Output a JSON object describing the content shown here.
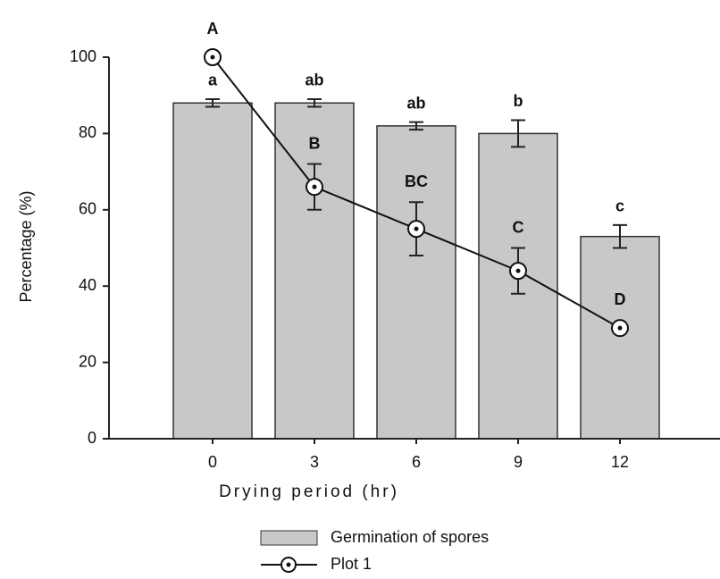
{
  "chart_data": {
    "type": "bar",
    "xlabel": "Drying period (hr)",
    "ylabel": "Percentage (%)",
    "categories": [
      "0",
      "3",
      "6",
      "9",
      "12"
    ],
    "series": [
      {
        "name": "Germination of spores",
        "type": "bar",
        "color": "#c8c8c8",
        "values": [
          88,
          88,
          82,
          80,
          53
        ],
        "errors": [
          1,
          1,
          1,
          3.5,
          3
        ],
        "letters": [
          "a",
          "ab",
          "ab",
          "b",
          "c"
        ]
      },
      {
        "name": "Plot 1",
        "type": "line",
        "color": "#111111",
        "values": [
          100,
          66,
          55,
          44,
          29
        ],
        "errors": [
          0,
          6,
          7,
          6,
          0
        ],
        "letters": [
          "A",
          "B",
          "BC",
          "C",
          "D"
        ]
      }
    ],
    "ylim": [
      0,
      100
    ],
    "yticks": [
      0,
      20,
      40,
      60,
      80,
      100
    ],
    "grid": false
  }
}
